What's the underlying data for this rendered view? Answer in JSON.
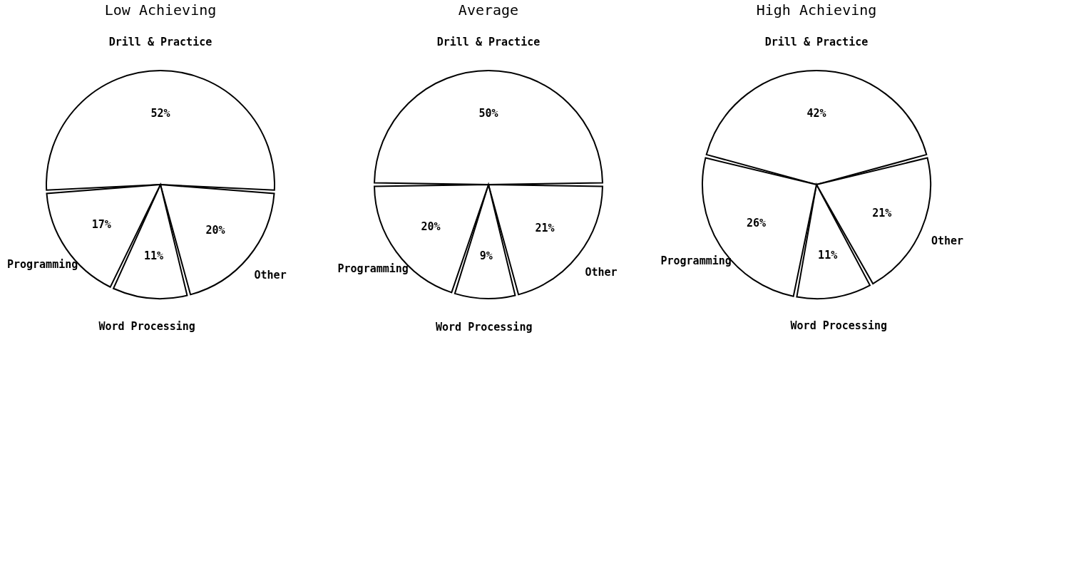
{
  "chart_data": [
    {
      "type": "pie",
      "title": "Low Achieving",
      "categories": [
        "Drill & Practice",
        "Other",
        "Word Processing",
        "Programming"
      ],
      "values": [
        52,
        20,
        11,
        17
      ],
      "value_labels": [
        "52%",
        "20%",
        "11%",
        "17%"
      ],
      "colors": [
        "#ffffff",
        "#ffffff",
        "#ffffff",
        "#ffffff"
      ]
    },
    {
      "type": "pie",
      "title": "Average",
      "categories": [
        "Drill & Practice",
        "Other",
        "Word Processing",
        "Programming"
      ],
      "values": [
        50,
        21,
        9,
        20
      ],
      "value_labels": [
        "50%",
        "21%",
        "9%",
        "20%"
      ],
      "colors": [
        "#ffffff",
        "#ffffff",
        "#ffffff",
        "#ffffff"
      ]
    },
    {
      "type": "pie",
      "title": "High Achieving",
      "categories": [
        "Drill & Practice",
        "Other",
        "Word Processing",
        "Programming"
      ],
      "values": [
        42,
        21,
        11,
        26
      ],
      "value_labels": [
        "42%",
        "21%",
        "11%",
        "26%"
      ],
      "colors": [
        "#ffffff",
        "#ffffff",
        "#ffffff",
        "#ffffff"
      ]
    }
  ]
}
